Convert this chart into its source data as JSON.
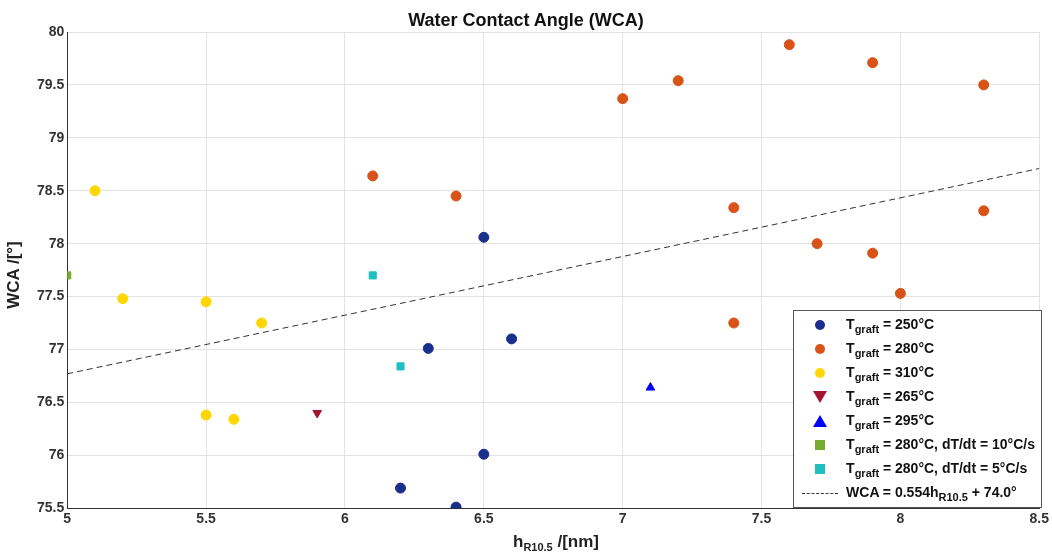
{
  "chart_data": {
    "type": "scatter",
    "title": "Water Contact Angle (WCA)",
    "xlabel": "h$_{R10.5}$ /[nm]",
    "ylabel": "WCA /[°]",
    "xlim": [
      5,
      8.5
    ],
    "xticks": [
      5,
      5.5,
      6,
      6.5,
      7,
      7.5,
      8,
      8.5
    ],
    "ylim": [
      75.5,
      80
    ],
    "yticks": [
      75.5,
      76,
      76.5,
      77,
      77.5,
      78,
      78.5,
      79,
      79.5,
      80
    ],
    "grid": true,
    "legend": "bottom right",
    "series": [
      {
        "name": "T$_{graft}$ = 250°C",
        "color": "#1a2f8c",
        "marker": "circle",
        "x": [
          6.5,
          6.3,
          6.6,
          6.5,
          6.2,
          6.4
        ],
        "values": [
          78.06,
          77.01,
          77.1,
          76.01,
          75.69,
          75.51
        ]
      },
      {
        "name": "T$_{graft}$ = 280°C",
        "color": "#d95319",
        "marker": "circle",
        "x": [
          6.1,
          6.4,
          7.0,
          7.2,
          7.6,
          7.9,
          8.3,
          7.4,
          7.7,
          7.9,
          8.3,
          8.0,
          7.4
        ],
        "values": [
          78.64,
          78.45,
          79.37,
          79.54,
          79.88,
          79.71,
          79.5,
          78.34,
          78.0,
          77.91,
          78.31,
          77.53,
          77.25
        ]
      },
      {
        "name": "T$_{graft}$ = 310°C",
        "color": "#ffd700",
        "marker": "circle",
        "x": [
          5.1,
          5.2,
          5.5,
          5.7,
          5.5,
          5.6
        ],
        "values": [
          78.5,
          77.48,
          77.45,
          77.25,
          76.38,
          76.34
        ]
      },
      {
        "name": "T$_{graft}$ = 265°C",
        "color": "#a2142f",
        "marker": "triangle-down",
        "x": [
          5.9
        ],
        "values": [
          76.4
        ]
      },
      {
        "name": "T$_{graft}$ = 295°C",
        "color": "#0000ff",
        "marker": "triangle",
        "x": [
          7.1
        ],
        "values": [
          76.64
        ]
      },
      {
        "name": "T$_{graft}$  = 280°C, dT/dt = 10°C/s",
        "color": "#77ac30",
        "marker": "square",
        "x": [
          5.0
        ],
        "values": [
          77.7
        ]
      },
      {
        "name": "T$_{graft}$  = 280°C, dT/dt = 5°C/s",
        "color": "#1fbfbf",
        "marker": "square",
        "x": [
          6.1,
          6.2
        ],
        "values": [
          77.7,
          76.84
        ]
      },
      {
        "name": "WCA = 0.554h$_{R10.5}$ + 74.0°",
        "type": "line",
        "color": "#333333",
        "line_style": "dashed",
        "marker": "none",
        "x": [
          5,
          8.5
        ],
        "values": [
          76.77,
          78.71
        ]
      }
    ]
  }
}
